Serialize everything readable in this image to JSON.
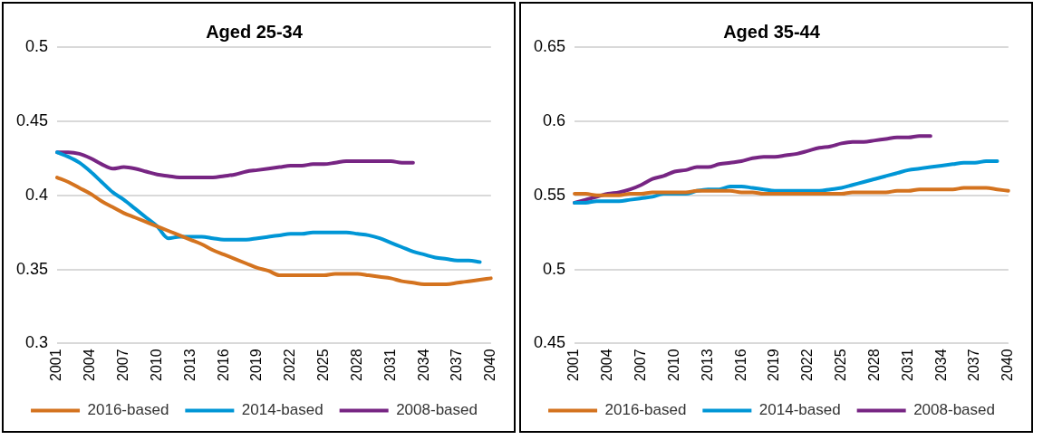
{
  "chart_data": [
    {
      "type": "line",
      "title": "Aged 25-34",
      "categories": [
        "2001",
        null,
        null,
        "2004",
        null,
        null,
        "2007",
        null,
        null,
        "2010",
        null,
        null,
        "2013",
        null,
        null,
        "2016",
        null,
        null,
        "2019",
        null,
        null,
        "2022",
        null,
        null,
        "2025",
        null,
        null,
        "2028",
        null,
        null,
        "2031",
        null,
        null,
        "2034",
        null,
        null,
        "2037",
        null,
        null,
        "2040"
      ],
      "series": [
        {
          "name": "2016-based",
          "color": "#d4731f",
          "values": [
            0.412,
            0.409,
            0.405,
            0.401,
            0.396,
            0.392,
            0.388,
            0.385,
            0.382,
            0.379,
            0.376,
            0.373,
            0.37,
            0.367,
            0.363,
            0.36,
            0.357,
            0.354,
            0.351,
            0.349,
            0.346,
            0.346,
            0.346,
            0.346,
            0.346,
            0.347,
            0.347,
            0.347,
            0.346,
            0.345,
            0.344,
            0.342,
            0.341,
            0.34,
            0.34,
            0.34,
            0.341,
            0.342,
            0.343,
            0.344
          ]
        },
        {
          "name": "2014-based",
          "color": "#0096d6",
          "values": [
            0.429,
            0.426,
            0.422,
            0.416,
            0.409,
            0.402,
            0.397,
            0.391,
            0.385,
            0.379,
            0.371,
            0.372,
            0.372,
            0.372,
            0.371,
            0.37,
            0.37,
            0.37,
            0.371,
            0.372,
            0.373,
            0.374,
            0.374,
            0.375,
            0.375,
            0.375,
            0.375,
            0.374,
            0.373,
            0.371,
            0.368,
            0.365,
            0.362,
            0.36,
            0.358,
            0.357,
            0.356,
            0.356,
            0.355,
            null
          ]
        },
        {
          "name": "2008-based",
          "color": "#772583",
          "values": [
            0.429,
            0.429,
            0.428,
            0.425,
            0.421,
            0.418,
            0.419,
            0.418,
            0.416,
            0.414,
            0.413,
            0.412,
            0.412,
            0.412,
            0.412,
            0.413,
            0.414,
            0.416,
            0.417,
            0.418,
            0.419,
            0.42,
            0.42,
            0.421,
            0.421,
            0.422,
            0.423,
            0.423,
            0.423,
            0.423,
            0.423,
            0.422,
            0.422,
            null,
            null,
            null,
            null,
            null,
            null,
            null
          ]
        }
      ],
      "ylim": [
        0.3,
        0.5
      ],
      "yticks": [
        0.3,
        0.35,
        0.4,
        0.45,
        0.5
      ],
      "grid": "y",
      "legend": "bottom",
      "marker": "none",
      "line_style": "solid"
    },
    {
      "type": "line",
      "title": "Aged 35-44",
      "categories": [
        "2001",
        null,
        null,
        "2004",
        null,
        null,
        "2007",
        null,
        null,
        "2010",
        null,
        null,
        "2013",
        null,
        null,
        "2016",
        null,
        null,
        "2019",
        null,
        null,
        "2022",
        null,
        null,
        "2025",
        null,
        null,
        "2028",
        null,
        null,
        "2031",
        null,
        null,
        "2034",
        null,
        null,
        "2037",
        null,
        null,
        "2040"
      ],
      "series": [
        {
          "name": "2016-based",
          "color": "#d4731f",
          "values": [
            0.551,
            0.551,
            0.55,
            0.55,
            0.55,
            0.551,
            0.551,
            0.552,
            0.552,
            0.552,
            0.552,
            0.553,
            0.553,
            0.553,
            0.553,
            0.552,
            0.552,
            0.551,
            0.551,
            0.551,
            0.551,
            0.551,
            0.551,
            0.551,
            0.551,
            0.552,
            0.552,
            0.552,
            0.552,
            0.553,
            0.553,
            0.554,
            0.554,
            0.554,
            0.554,
            0.555,
            0.555,
            0.555,
            0.554,
            0.553
          ]
        },
        {
          "name": "2014-based",
          "color": "#0096d6",
          "values": [
            0.545,
            0.545,
            0.546,
            0.546,
            0.546,
            0.547,
            0.548,
            0.549,
            0.551,
            0.551,
            0.551,
            0.553,
            0.554,
            0.554,
            0.556,
            0.556,
            0.555,
            0.554,
            0.553,
            0.553,
            0.553,
            0.553,
            0.553,
            0.554,
            0.555,
            0.557,
            0.559,
            0.561,
            0.563,
            0.565,
            0.567,
            0.568,
            0.569,
            0.57,
            0.571,
            0.572,
            0.572,
            0.573,
            0.573,
            null
          ]
        },
        {
          "name": "2008-based",
          "color": "#772583",
          "values": [
            0.545,
            0.547,
            0.549,
            0.551,
            0.552,
            0.554,
            0.557,
            0.561,
            0.563,
            0.566,
            0.567,
            0.569,
            0.569,
            0.571,
            0.572,
            0.573,
            0.575,
            0.576,
            0.576,
            0.577,
            0.578,
            0.58,
            0.582,
            0.583,
            0.585,
            0.586,
            0.586,
            0.587,
            0.588,
            0.589,
            0.589,
            0.59,
            0.59,
            null,
            null,
            null,
            null,
            null,
            null,
            null
          ]
        }
      ],
      "ylim": [
        0.45,
        0.65
      ],
      "yticks": [
        0.45,
        0.5,
        0.55,
        0.6,
        0.65
      ],
      "grid": "y",
      "legend": "bottom",
      "marker": "none",
      "line_style": "solid"
    }
  ]
}
